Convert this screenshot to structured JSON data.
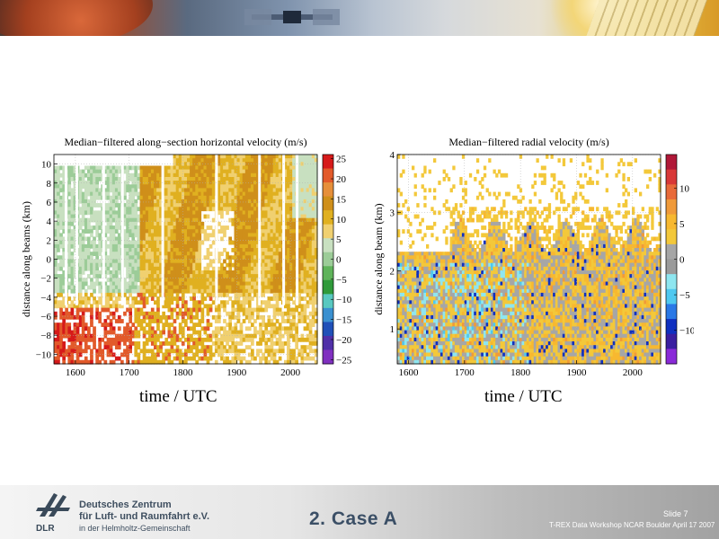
{
  "footer": {
    "org_line1": "Deutsches Zentrum",
    "org_line2": "für Luft- und Raumfahrt e.V.",
    "org_line3": "in der Helmholtz-Gemeinschaft",
    "logo_text": "DLR",
    "slide_title": "2. Case A",
    "slide_number": "Slide 7",
    "workshop": "T-REX Data Workshop NCAR Boulder April 17 2007"
  },
  "chart_data": [
    {
      "type": "heatmap",
      "title": "Median−filtered along−section horizontal velocity (m/s)",
      "xlabel": "time / UTC",
      "ylabel": "distance along beams (km)",
      "xlim": [
        1560,
        2050
      ],
      "ylim": [
        -11,
        11
      ],
      "xticks": [
        1600,
        1700,
        1800,
        1900,
        2000
      ],
      "yticks": [
        10,
        8,
        6,
        4,
        2,
        0,
        -2,
        -4,
        -6,
        -8,
        -10
      ],
      "yticklabels": [
        "10",
        "8",
        "6",
        "4",
        "2",
        "0",
        "−2",
        "−4",
        "−6",
        "−8",
        "−10"
      ],
      "colorbar": {
        "ticks": [
          "25",
          "20",
          "15",
          "10",
          "5",
          "0",
          "−5",
          "−10",
          "−15",
          "−20",
          "−25"
        ],
        "colors": [
          "#d61a1a",
          "#e25a2a",
          "#e68f3a",
          "#cf8f1a",
          "#e0b020",
          "#f0d070",
          "#c8e0c0",
          "#9ccc98",
          "#5fb35a",
          "#2f9a3a",
          "#58c8c0",
          "#3a90d0",
          "#2050b8",
          "#5030a8",
          "#8030c0"
        ]
      },
      "grid": true
    },
    {
      "type": "heatmap",
      "title": "Median−filtered radial velocity (m/s)",
      "xlabel": "time / UTC",
      "ylabel": "distance along beam (km)",
      "xlim": [
        1580,
        2050
      ],
      "ylim": [
        0.4,
        4
      ],
      "xticks": [
        1600,
        1700,
        1800,
        1900,
        2000
      ],
      "yticks": [
        4,
        3,
        2,
        1
      ],
      "yticklabels": [
        "4",
        "3",
        "2",
        "1"
      ],
      "colorbar": {
        "ticks": [
          "10",
          "5",
          "0",
          "−5",
          "−10"
        ],
        "colors": [
          "#b01838",
          "#d83838",
          "#e86a3a",
          "#f09a3a",
          "#f7b830",
          "#f3c83a",
          "#a6a6a6",
          "#9a9a9a",
          "#8ee6f0",
          "#4fc8f0",
          "#2a78e6",
          "#1030c0",
          "#3a1fa0",
          "#8a2ad8"
        ]
      },
      "grid": true
    }
  ]
}
